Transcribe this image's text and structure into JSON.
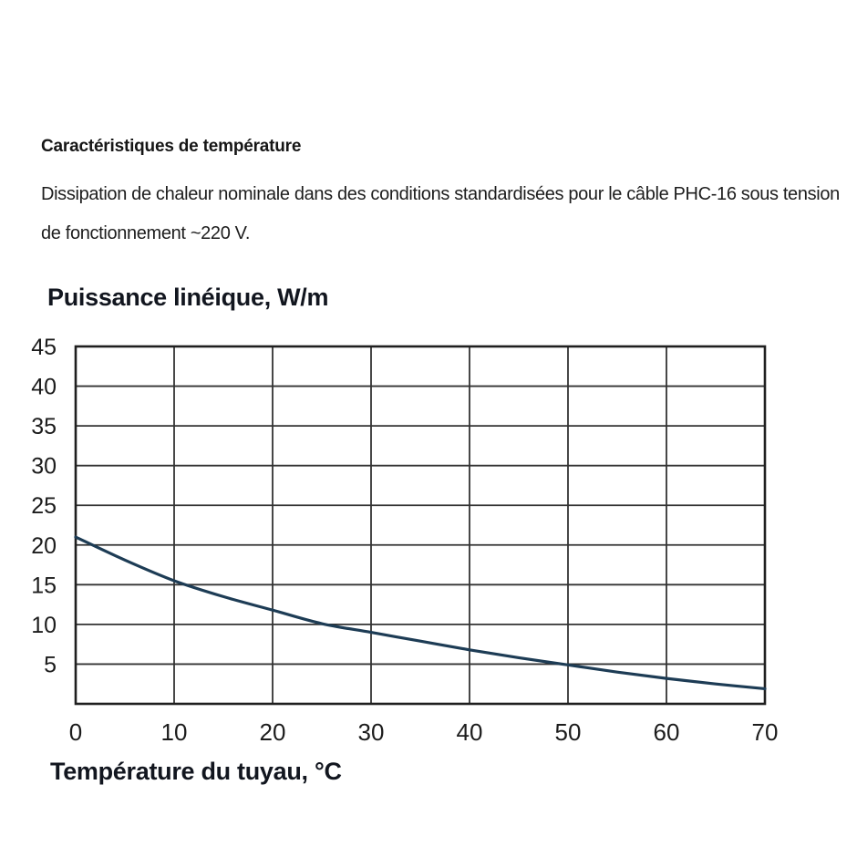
{
  "page": {
    "heading": "Caractéristiques de température",
    "body": "Dissipation de chaleur nominale dans des conditions standardisées pour le câble PHC-16 sous tension de fonctionnement ~220 V."
  },
  "chart_data": {
    "type": "line",
    "title": "Puissance linéique, W/m",
    "xlabel": "Température du tuyau, °C",
    "ylabel": "Puissance linéique, W/m",
    "x": [
      0,
      5,
      10,
      15,
      20,
      25,
      30,
      35,
      40,
      45,
      50,
      55,
      60,
      65,
      70
    ],
    "y": [
      21.0,
      18.1,
      15.5,
      13.5,
      11.8,
      10.1,
      9.0,
      7.9,
      6.8,
      5.8,
      4.9,
      4.0,
      3.2,
      2.5,
      1.9
    ],
    "x_ticks": [
      0,
      10,
      20,
      30,
      40,
      50,
      60,
      70
    ],
    "y_ticks": [
      5,
      10,
      15,
      20,
      25,
      30,
      35,
      40,
      45
    ],
    "xlim": [
      0,
      70
    ],
    "ylim": [
      0,
      45
    ],
    "grid": true,
    "legend_position": "none",
    "line_color": "#1d3c55",
    "grid_color": "#333333",
    "border_color": "#1f1f1f",
    "tick_label_color": "#1c1c1c"
  }
}
